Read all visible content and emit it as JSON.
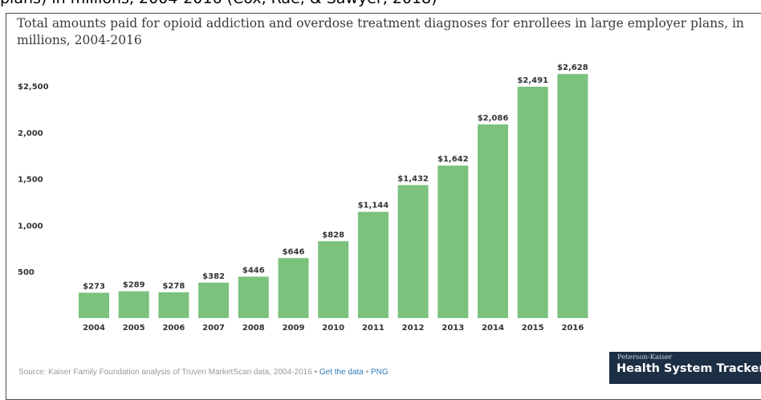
{
  "caption_top": "plans) in millions, 2004-2016 (Cox, Rae, & Sawyer, 2018)",
  "chart_data": {
    "type": "bar",
    "title": "Total amounts paid for opioid addiction and overdose treatment diagnoses for enrollees in large employer plans, in millions, 2004-2016",
    "categories": [
      "2004",
      "2005",
      "2006",
      "2007",
      "2008",
      "2009",
      "2010",
      "2011",
      "2012",
      "2013",
      "2014",
      "2015",
      "2016"
    ],
    "values": [
      273,
      289,
      278,
      382,
      446,
      646,
      828,
      1144,
      1432,
      1642,
      2086,
      2491,
      2628
    ],
    "value_labels": [
      "$273",
      "$289",
      "$278",
      "$382",
      "$446",
      "$646",
      "$828",
      "$1,144",
      "$1,432",
      "$1,642",
      "$2,086",
      "$2,491",
      "$2,628"
    ],
    "y_ticks": [
      {
        "value": 2500,
        "label": "$2,500"
      },
      {
        "value": 2000,
        "label": "2,000"
      },
      {
        "value": 1500,
        "label": "1,500"
      },
      {
        "value": 1000,
        "label": "1,000"
      },
      {
        "value": 500,
        "label": "500"
      }
    ],
    "ylim": [
      0,
      2628
    ],
    "xlabel": "",
    "ylabel": "",
    "grid": false,
    "bar_color": "#7cc27e"
  },
  "footer": {
    "source_text": "Source: Kaiser Family Foundation analysis of Truven MarketScan data, 2004-2016 • ",
    "get_data": "Get the data",
    "sep": " • ",
    "png": "PNG"
  },
  "brand": {
    "small": "Peterson-Kaiser",
    "big": "Health System Tracker"
  }
}
